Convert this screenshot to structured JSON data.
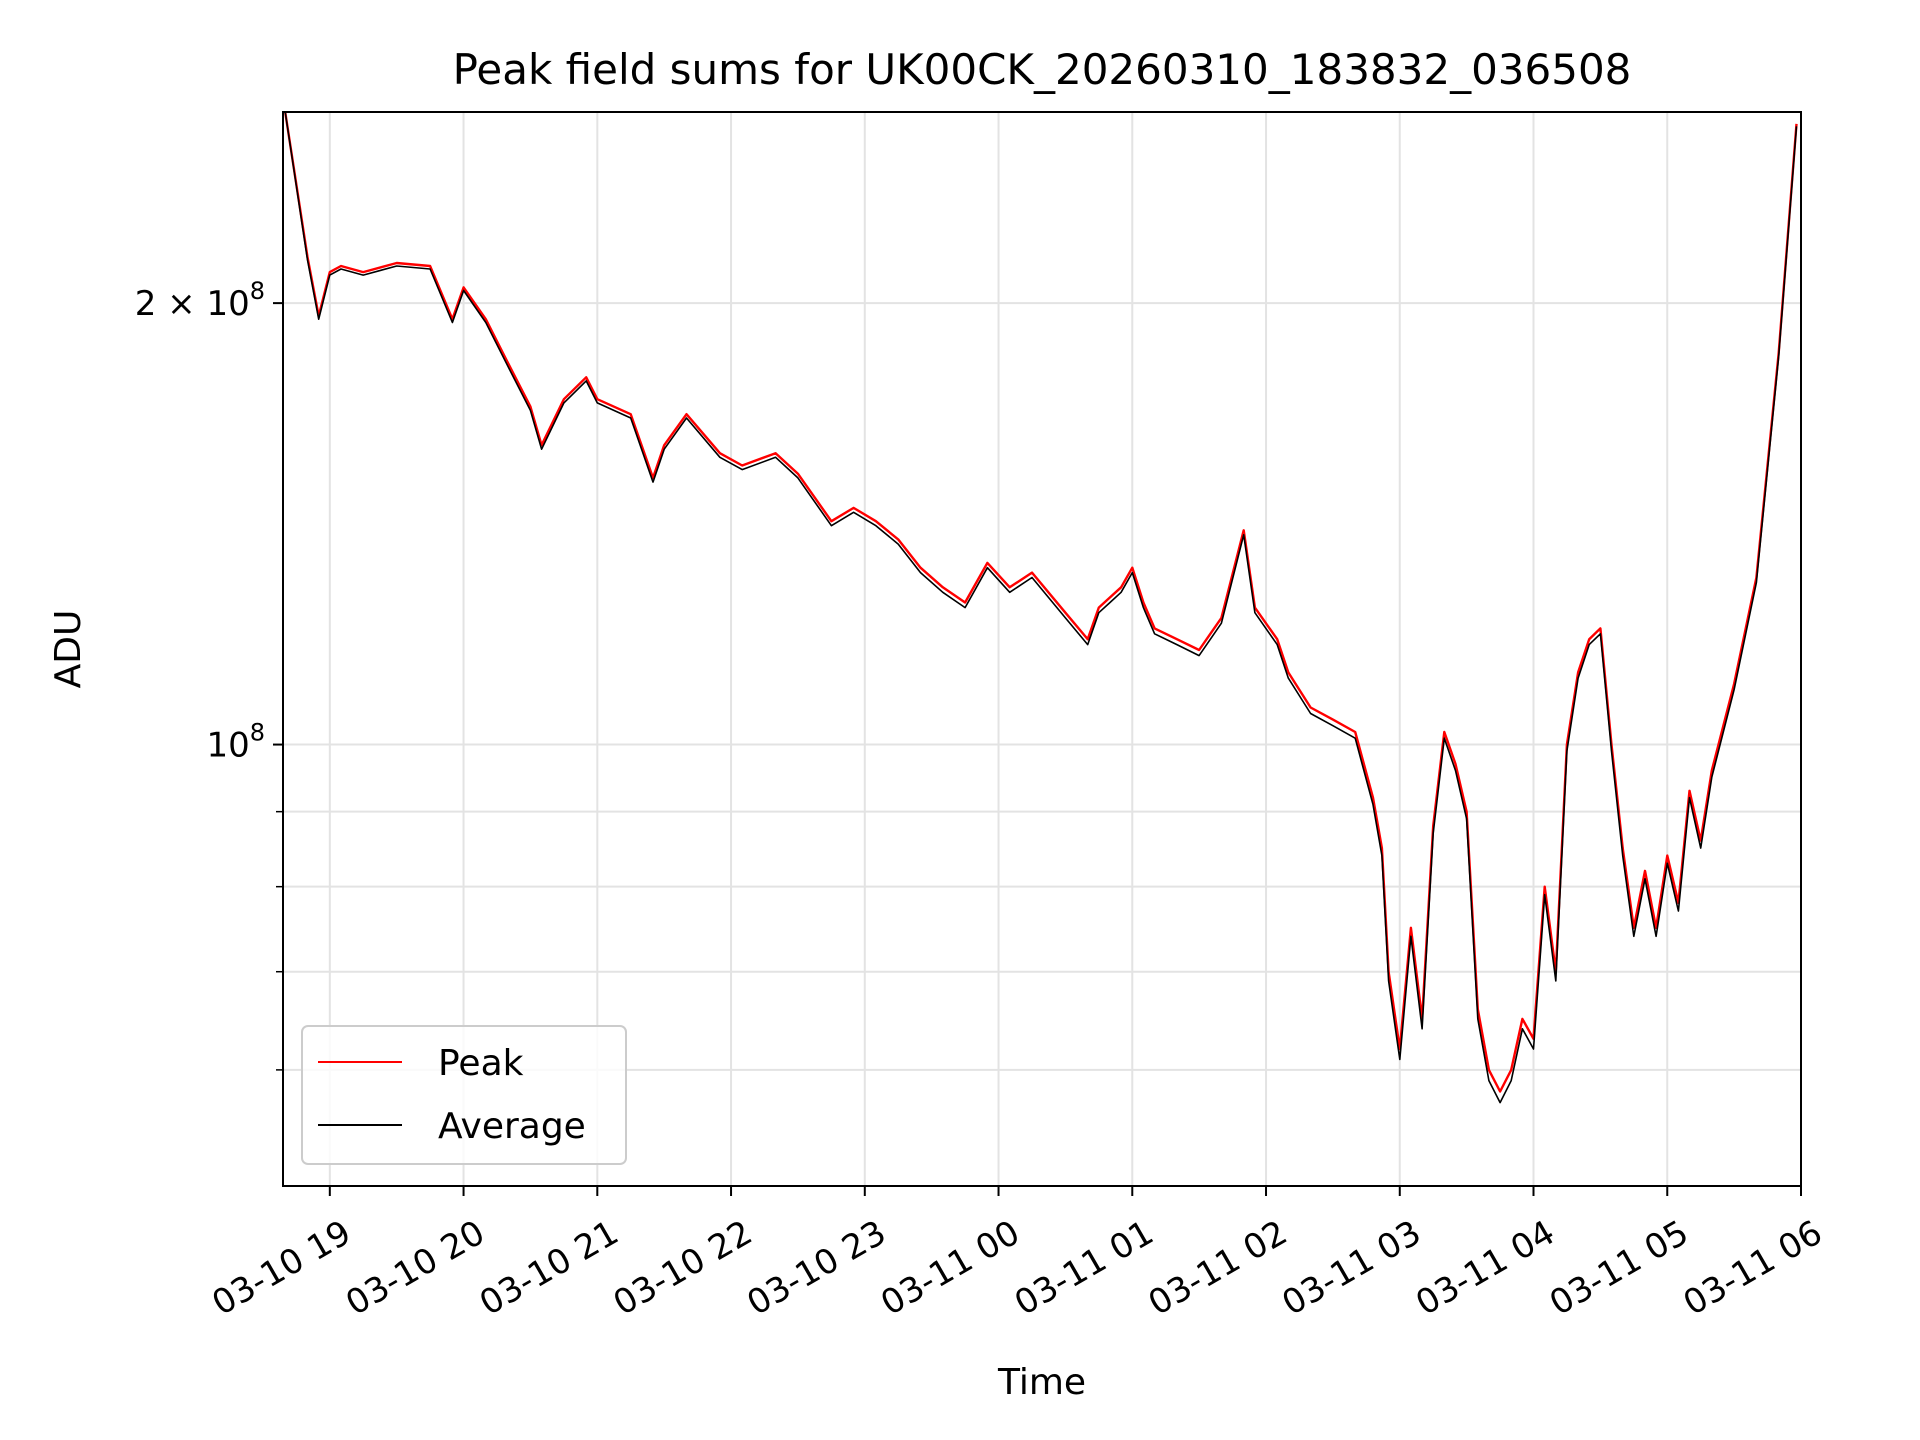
{
  "chart_data": {
    "type": "line",
    "title": "Peak field sums for UK00CK_20260310_183832_036508",
    "xlabel": "Time",
    "ylabel": "ADU",
    "y_scale": "log",
    "ylim": [
      50000000,
      270000000
    ],
    "xlim": [
      "2026-03-10 18:39",
      "2026-03-11 06:00"
    ],
    "x_ticks": [
      "03-10 19",
      "03-10 20",
      "03-10 21",
      "03-10 22",
      "03-10 23",
      "03-11 00",
      "03-11 01",
      "03-11 02",
      "03-11 03",
      "03-11 04",
      "03-11 05",
      "03-11 06"
    ],
    "y_ticks": [
      {
        "value": 100000000,
        "base": "10",
        "exp": "8",
        "mult": ""
      },
      {
        "value": 200000000,
        "base": "10",
        "exp": "8",
        "mult": "2 × "
      }
    ],
    "grid": true,
    "legend_position": "lower left",
    "series": [
      {
        "name": "Peak",
        "color": "#ff0000",
        "x": [
          "2026-03-10 18:40",
          "2026-03-10 18:50",
          "2026-03-10 18:55",
          "2026-03-10 19:00",
          "2026-03-10 19:05",
          "2026-03-10 19:15",
          "2026-03-10 19:30",
          "2026-03-10 19:45",
          "2026-03-10 19:55",
          "2026-03-10 20:00",
          "2026-03-10 20:10",
          "2026-03-10 20:20",
          "2026-03-10 20:30",
          "2026-03-10 20:35",
          "2026-03-10 20:45",
          "2026-03-10 20:55",
          "2026-03-10 21:00",
          "2026-03-10 21:15",
          "2026-03-10 21:25",
          "2026-03-10 21:30",
          "2026-03-10 21:40",
          "2026-03-10 21:55",
          "2026-03-10 22:05",
          "2026-03-10 22:20",
          "2026-03-10 22:30",
          "2026-03-10 22:45",
          "2026-03-10 22:55",
          "2026-03-10 23:05",
          "2026-03-10 23:15",
          "2026-03-10 23:25",
          "2026-03-10 23:35",
          "2026-03-10 23:45",
          "2026-03-10 23:55",
          "2026-03-11 00:05",
          "2026-03-11 00:15",
          "2026-03-11 00:30",
          "2026-03-11 00:40",
          "2026-03-11 00:45",
          "2026-03-11 00:50",
          "2026-03-11 00:55",
          "2026-03-11 01:00",
          "2026-03-11 01:05",
          "2026-03-11 01:10",
          "2026-03-11 01:20",
          "2026-03-11 01:30",
          "2026-03-11 01:40",
          "2026-03-11 01:50",
          "2026-03-11 01:55",
          "2026-03-11 02:05",
          "2026-03-11 02:10",
          "2026-03-11 02:20",
          "2026-03-11 02:30",
          "2026-03-11 02:40",
          "2026-03-11 02:48",
          "2026-03-11 02:52",
          "2026-03-11 02:55",
          "2026-03-11 03:00",
          "2026-03-11 03:05",
          "2026-03-11 03:10",
          "2026-03-11 03:15",
          "2026-03-11 03:20",
          "2026-03-11 03:25",
          "2026-03-11 03:30",
          "2026-03-11 03:35",
          "2026-03-11 03:40",
          "2026-03-11 03:45",
          "2026-03-11 03:50",
          "2026-03-11 03:55",
          "2026-03-11 04:00",
          "2026-03-11 04:05",
          "2026-03-11 04:10",
          "2026-03-11 04:15",
          "2026-03-11 04:20",
          "2026-03-11 04:25",
          "2026-03-11 04:30",
          "2026-03-11 04:35",
          "2026-03-11 04:40",
          "2026-03-11 04:45",
          "2026-03-11 04:50",
          "2026-03-11 04:55",
          "2026-03-11 05:00",
          "2026-03-11 05:05",
          "2026-03-11 05:10",
          "2026-03-11 05:15",
          "2026-03-11 05:20",
          "2026-03-11 05:30",
          "2026-03-11 05:40",
          "2026-03-11 05:50",
          "2026-03-11 05:58"
        ],
        "values": [
          270000000,
          215000000,
          196000000,
          210000000,
          212000000,
          210000000,
          213000000,
          212000000,
          195000000,
          205000000,
          195000000,
          182000000,
          170000000,
          160000000,
          172000000,
          178000000,
          172000000,
          168000000,
          152000000,
          160000000,
          168000000,
          158000000,
          155000000,
          158000000,
          153000000,
          142000000,
          145000000,
          142000000,
          138000000,
          132000000,
          128000000,
          125000000,
          133000000,
          128000000,
          131000000,
          123000000,
          118000000,
          124000000,
          126000000,
          128000000,
          132000000,
          125000000,
          120000000,
          118000000,
          116000000,
          122000000,
          140000000,
          124000000,
          118000000,
          112000000,
          106000000,
          104000000,
          102000000,
          92000000,
          85000000,
          70000000,
          62000000,
          75000000,
          65000000,
          88000000,
          102000000,
          97000000,
          90000000,
          66000000,
          60000000,
          58000000,
          60000000,
          65000000,
          63000000,
          80000000,
          70000000,
          100000000,
          112000000,
          118000000,
          120000000,
          100000000,
          85000000,
          75000000,
          82000000,
          75000000,
          84000000,
          78000000,
          93000000,
          86000000,
          96000000,
          110000000,
          130000000,
          185000000,
          265000000
        ]
      },
      {
        "name": "Average",
        "color": "#000000",
        "x": [
          "2026-03-10 18:40",
          "2026-03-10 18:50",
          "2026-03-10 18:55",
          "2026-03-10 19:00",
          "2026-03-10 19:05",
          "2026-03-10 19:15",
          "2026-03-10 19:30",
          "2026-03-10 19:45",
          "2026-03-10 19:55",
          "2026-03-10 20:00",
          "2026-03-10 20:10",
          "2026-03-10 20:20",
          "2026-03-10 20:30",
          "2026-03-10 20:35",
          "2026-03-10 20:45",
          "2026-03-10 20:55",
          "2026-03-10 21:00",
          "2026-03-10 21:15",
          "2026-03-10 21:25",
          "2026-03-10 21:30",
          "2026-03-10 21:40",
          "2026-03-10 21:55",
          "2026-03-10 22:05",
          "2026-03-10 22:20",
          "2026-03-10 22:30",
          "2026-03-10 22:45",
          "2026-03-10 22:55",
          "2026-03-10 23:05",
          "2026-03-10 23:15",
          "2026-03-10 23:25",
          "2026-03-10 23:35",
          "2026-03-10 23:45",
          "2026-03-10 23:55",
          "2026-03-11 00:05",
          "2026-03-11 00:15",
          "2026-03-11 00:30",
          "2026-03-11 00:40",
          "2026-03-11 00:45",
          "2026-03-11 00:50",
          "2026-03-11 00:55",
          "2026-03-11 01:00",
          "2026-03-11 01:05",
          "2026-03-11 01:10",
          "2026-03-11 01:20",
          "2026-03-11 01:30",
          "2026-03-11 01:40",
          "2026-03-11 01:50",
          "2026-03-11 01:55",
          "2026-03-11 02:05",
          "2026-03-11 02:10",
          "2026-03-11 02:20",
          "2026-03-11 02:30",
          "2026-03-11 02:40",
          "2026-03-11 02:48",
          "2026-03-11 02:52",
          "2026-03-11 02:55",
          "2026-03-11 03:00",
          "2026-03-11 03:05",
          "2026-03-11 03:10",
          "2026-03-11 03:15",
          "2026-03-11 03:20",
          "2026-03-11 03:25",
          "2026-03-11 03:30",
          "2026-03-11 03:35",
          "2026-03-11 03:40",
          "2026-03-11 03:45",
          "2026-03-11 03:50",
          "2026-03-11 03:55",
          "2026-03-11 04:00",
          "2026-03-11 04:05",
          "2026-03-11 04:10",
          "2026-03-11 04:15",
          "2026-03-11 04:20",
          "2026-03-11 04:25",
          "2026-03-11 04:30",
          "2026-03-11 04:35",
          "2026-03-11 04:40",
          "2026-03-11 04:45",
          "2026-03-11 04:50",
          "2026-03-11 04:55",
          "2026-03-11 05:00",
          "2026-03-11 05:05",
          "2026-03-11 05:10",
          "2026-03-11 05:15",
          "2026-03-11 05:20",
          "2026-03-11 05:30",
          "2026-03-11 05:40",
          "2026-03-11 05:50",
          "2026-03-11 05:58"
        ],
        "values": [
          270000000,
          214000000,
          195000000,
          209000000,
          211000000,
          209000000,
          212000000,
          211000000,
          194000000,
          204000000,
          194000000,
          181000000,
          169000000,
          159000000,
          171000000,
          177000000,
          171000000,
          167000000,
          151000000,
          159000000,
          167000000,
          157000000,
          154000000,
          157000000,
          152000000,
          141000000,
          144000000,
          141000000,
          137000000,
          131000000,
          127000000,
          124000000,
          132000000,
          127000000,
          130000000,
          122000000,
          117000000,
          123000000,
          125000000,
          127000000,
          131000000,
          124000000,
          119000000,
          117000000,
          115000000,
          121000000,
          139000000,
          123000000,
          117000000,
          111000000,
          105000000,
          103000000,
          101000000,
          91000000,
          84000000,
          69000000,
          61000000,
          74000000,
          64000000,
          87000000,
          101000000,
          96000000,
          89000000,
          65000000,
          59000000,
          57000000,
          59000000,
          64000000,
          62000000,
          79000000,
          69000000,
          99000000,
          111000000,
          117000000,
          119000000,
          99000000,
          84000000,
          74000000,
          81000000,
          74000000,
          83000000,
          77000000,
          92000000,
          85000000,
          95000000,
          109000000,
          129000000,
          184000000,
          264000000
        ]
      }
    ]
  }
}
